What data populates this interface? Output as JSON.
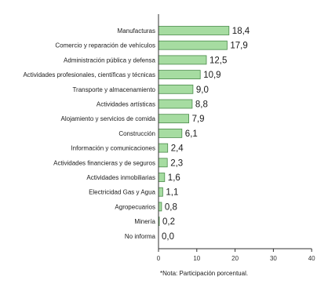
{
  "chart_data": {
    "type": "bar",
    "orientation": "horizontal",
    "categories": [
      "Manufacturas",
      "Comercio y reparación de vehículos",
      "Administración pública y defensa",
      "Actividades profesionales, científicas y técnicas",
      "Transporte  y almacenamiento",
      "Actividades  artísticas",
      "Alojamiento y servicios de comida",
      "Construcción",
      "Información y comunicaciones",
      "Actividades financieras y de seguros",
      "Actividades inmobiliarias",
      "Electricidad  Gas y Agua",
      "Agropecuarios",
      "Minería",
      "No informa"
    ],
    "values": [
      18.4,
      17.9,
      12.5,
      10.9,
      9.0,
      8.8,
      7.9,
      6.1,
      2.4,
      2.3,
      1.6,
      1.1,
      0.8,
      0.2,
      0.0
    ],
    "value_labels": [
      "18,4",
      "17,9",
      "12,5",
      "10,9",
      "9,0",
      "8,8",
      "7,9",
      "6,1",
      "2,4",
      "2,3",
      "1,6",
      "1,1",
      "0,8",
      "0,2",
      "0,0"
    ],
    "xticks": [
      0,
      10,
      20,
      30,
      40
    ],
    "xlim": [
      0,
      40
    ],
    "grid": false,
    "note": "*Nota: Participación porcentual.",
    "colors": {
      "bar_fill": "#a6dca1",
      "bar_stroke": "#4a8a4a",
      "axis": "#333333"
    }
  }
}
